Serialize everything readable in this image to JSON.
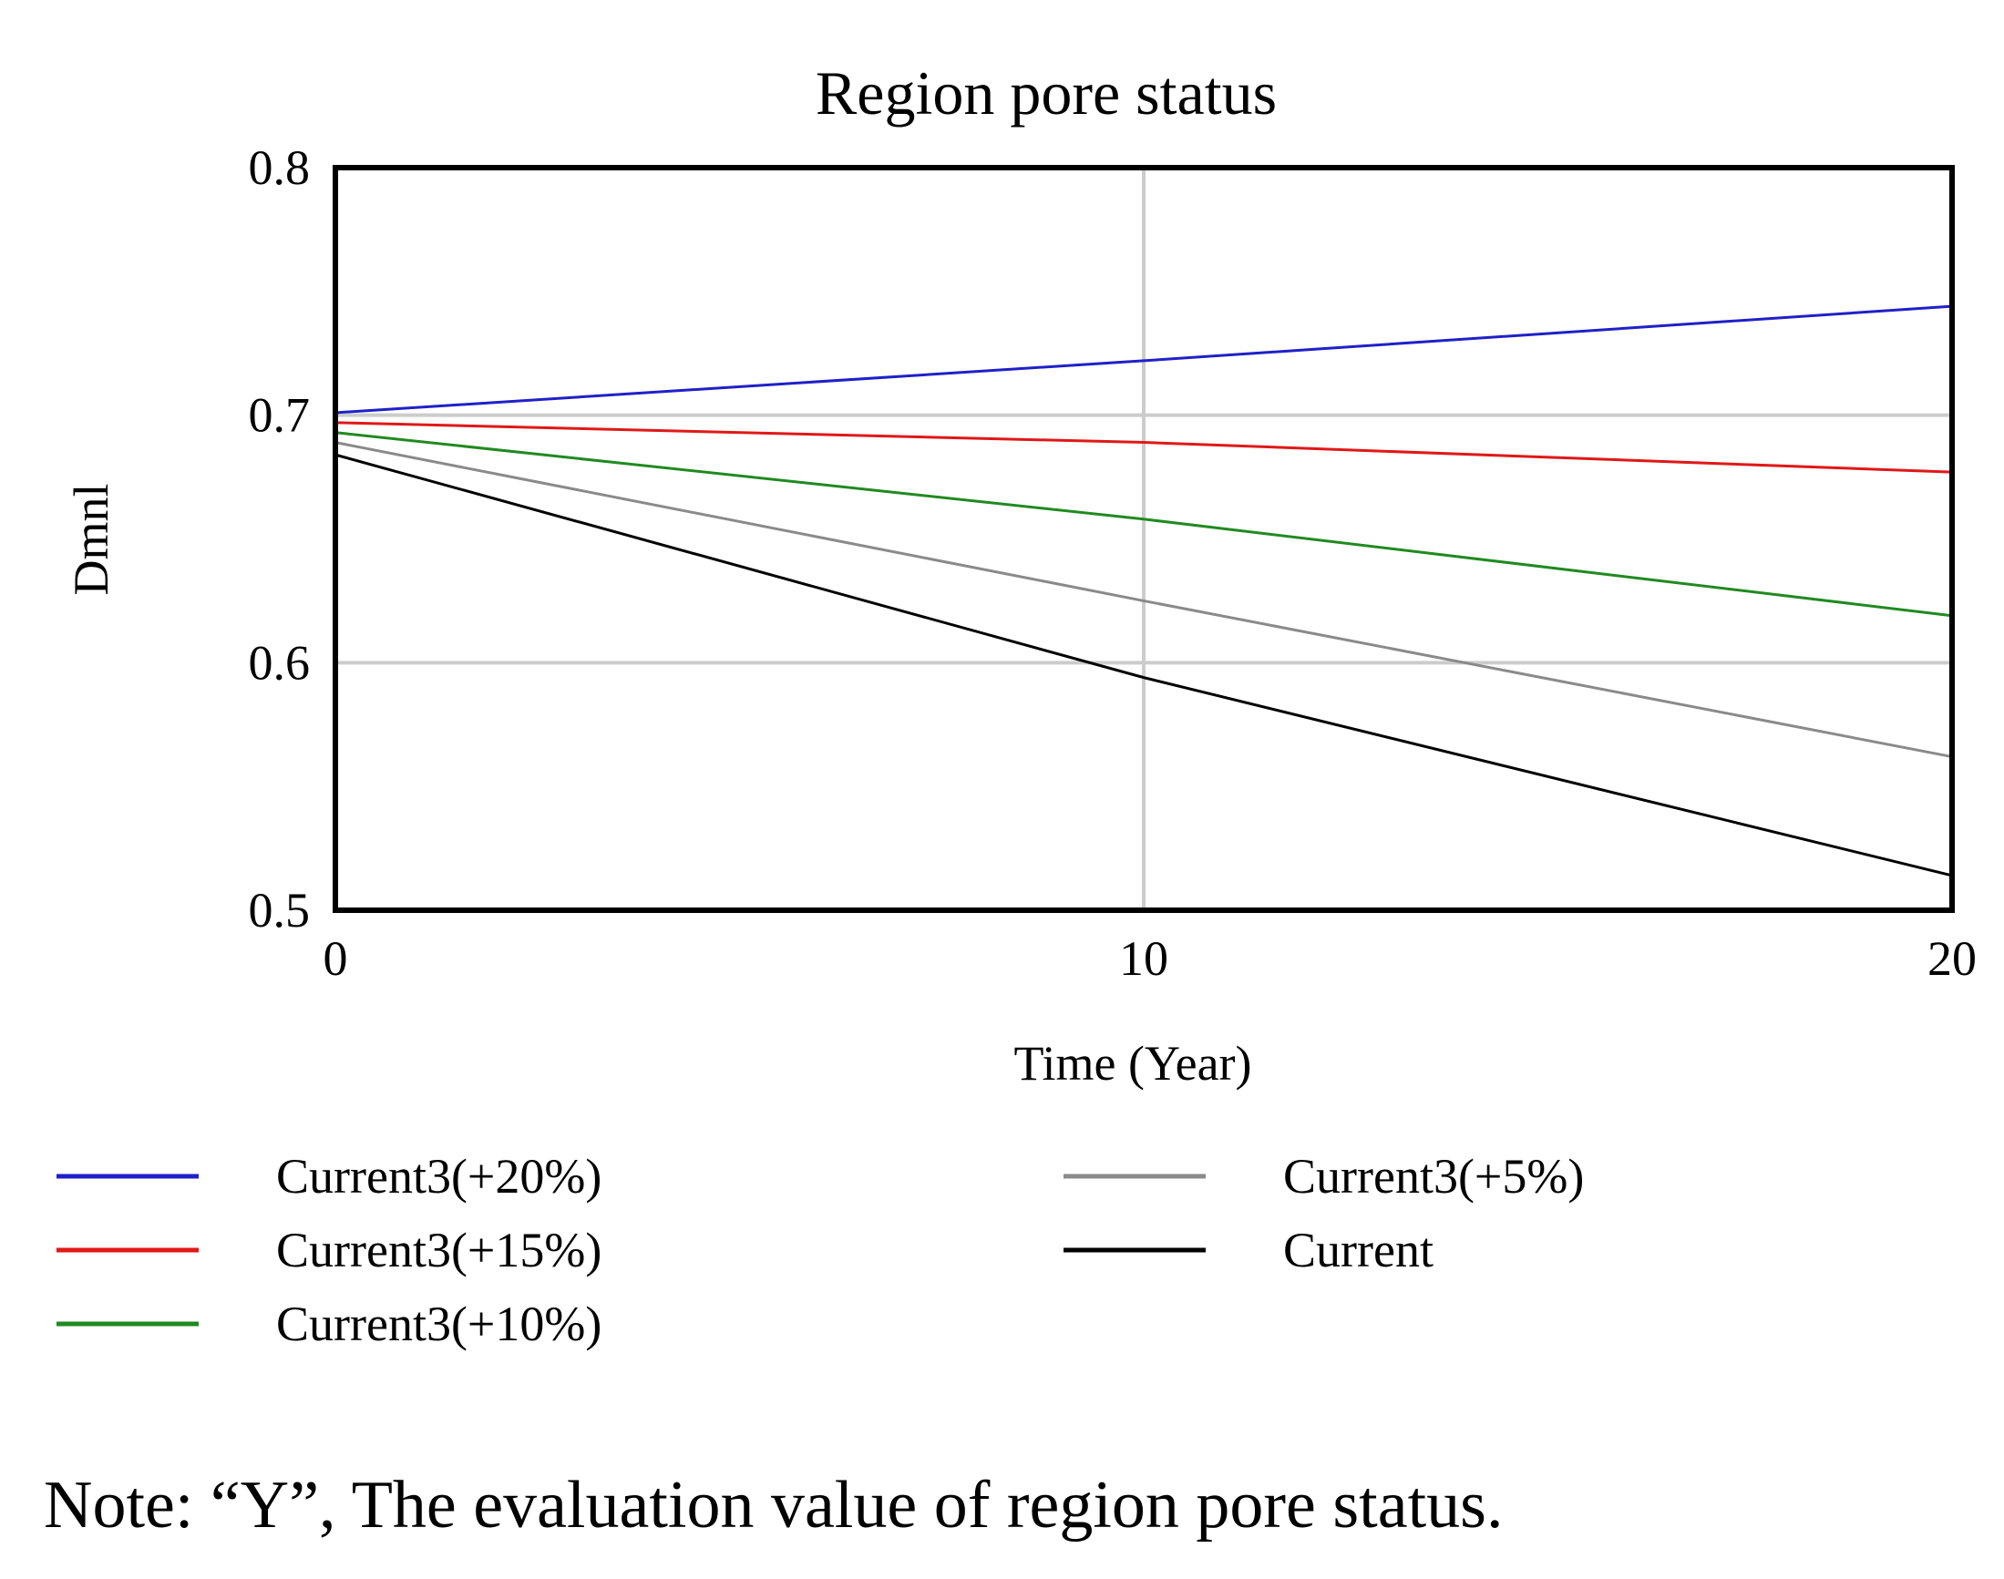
{
  "chart_data": {
    "type": "line",
    "title": "Region pore status",
    "xlabel": "Time (Year)",
    "ylabel": "Dmnl",
    "xlim": [
      0,
      20
    ],
    "ylim": [
      0.5,
      0.8
    ],
    "x_ticks": [
      0,
      10,
      20
    ],
    "x_tick_labels": [
      "0",
      "10",
      "20"
    ],
    "y_ticks": [
      0.5,
      0.6,
      0.7,
      0.8
    ],
    "y_tick_labels": [
      "0.5",
      "0.6",
      "0.7",
      "0.8"
    ],
    "grid": true,
    "legend_position": "bottom",
    "x": [
      0,
      10,
      20
    ],
    "series": [
      {
        "name": "Current3(+20%)",
        "color": "#2020c8",
        "values": [
          0.701,
          0.722,
          0.744
        ]
      },
      {
        "name": "Current3(+15%)",
        "color": "#e01818",
        "values": [
          0.697,
          0.689,
          0.677
        ]
      },
      {
        "name": "Current3(+10%)",
        "color": "#208a20",
        "values": [
          0.693,
          0.658,
          0.619
        ]
      },
      {
        "name": "Current3(+5%)",
        "color": "#8a8a8a",
        "values": [
          0.689,
          0.625,
          0.562
        ]
      },
      {
        "name": "Current",
        "color": "#000000",
        "values": [
          0.684,
          0.594,
          0.514
        ]
      }
    ]
  },
  "note": "Note: “Y”, The evaluation value of region pore status."
}
